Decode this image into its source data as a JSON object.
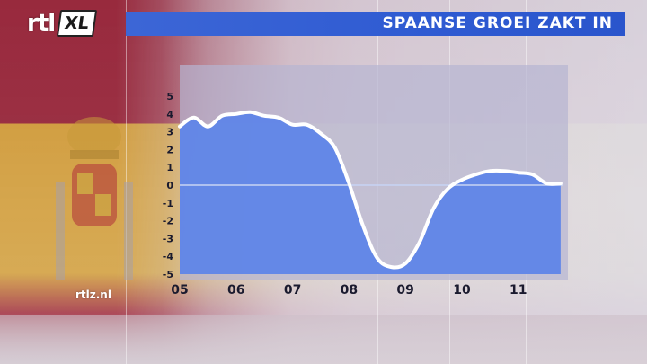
{
  "brand": {
    "logo_main": "rtl",
    "logo_badge": "XL",
    "source": "rtlz.nl"
  },
  "colors": {
    "title_bar": "#2f5bd2",
    "line": "#ffffff",
    "area": "#5f85e8",
    "panel": "#b7b5d2"
  },
  "chart_data": {
    "type": "area",
    "title": "SPAANSE GROEI ZAKT IN",
    "xlabel": "",
    "ylabel": "",
    "ylim": [
      -5,
      5
    ],
    "xlim": [
      2005.0,
      2011.8
    ],
    "yticks": [
      "5",
      "4",
      "3",
      "2",
      "1",
      "0",
      "-1",
      "-2",
      "-3",
      "-4",
      "-5"
    ],
    "xticks": [
      "05",
      "06",
      "07",
      "08",
      "09",
      "10",
      "11"
    ],
    "grid": false,
    "zero_line": true,
    "series": [
      {
        "values_x": [
          2005.0,
          2005.25,
          2005.5,
          2005.75,
          2006.0,
          2006.25,
          2006.5,
          2006.75,
          2007.0,
          2007.25,
          2007.5,
          2007.75,
          2008.0,
          2008.25,
          2008.5,
          2008.75,
          2009.0,
          2009.25,
          2009.5,
          2009.75,
          2010.0,
          2010.25,
          2010.5,
          2010.75,
          2011.0,
          2011.25,
          2011.5,
          2011.75
        ],
        "values_y": [
          3.3,
          3.8,
          3.3,
          3.9,
          4.0,
          4.1,
          3.9,
          3.8,
          3.4,
          3.4,
          2.9,
          2.1,
          0.1,
          -2.3,
          -4.1,
          -4.6,
          -4.4,
          -3.2,
          -1.3,
          -0.2,
          0.3,
          0.6,
          0.8,
          0.8,
          0.7,
          0.6,
          0.1,
          0.1
        ]
      }
    ]
  }
}
